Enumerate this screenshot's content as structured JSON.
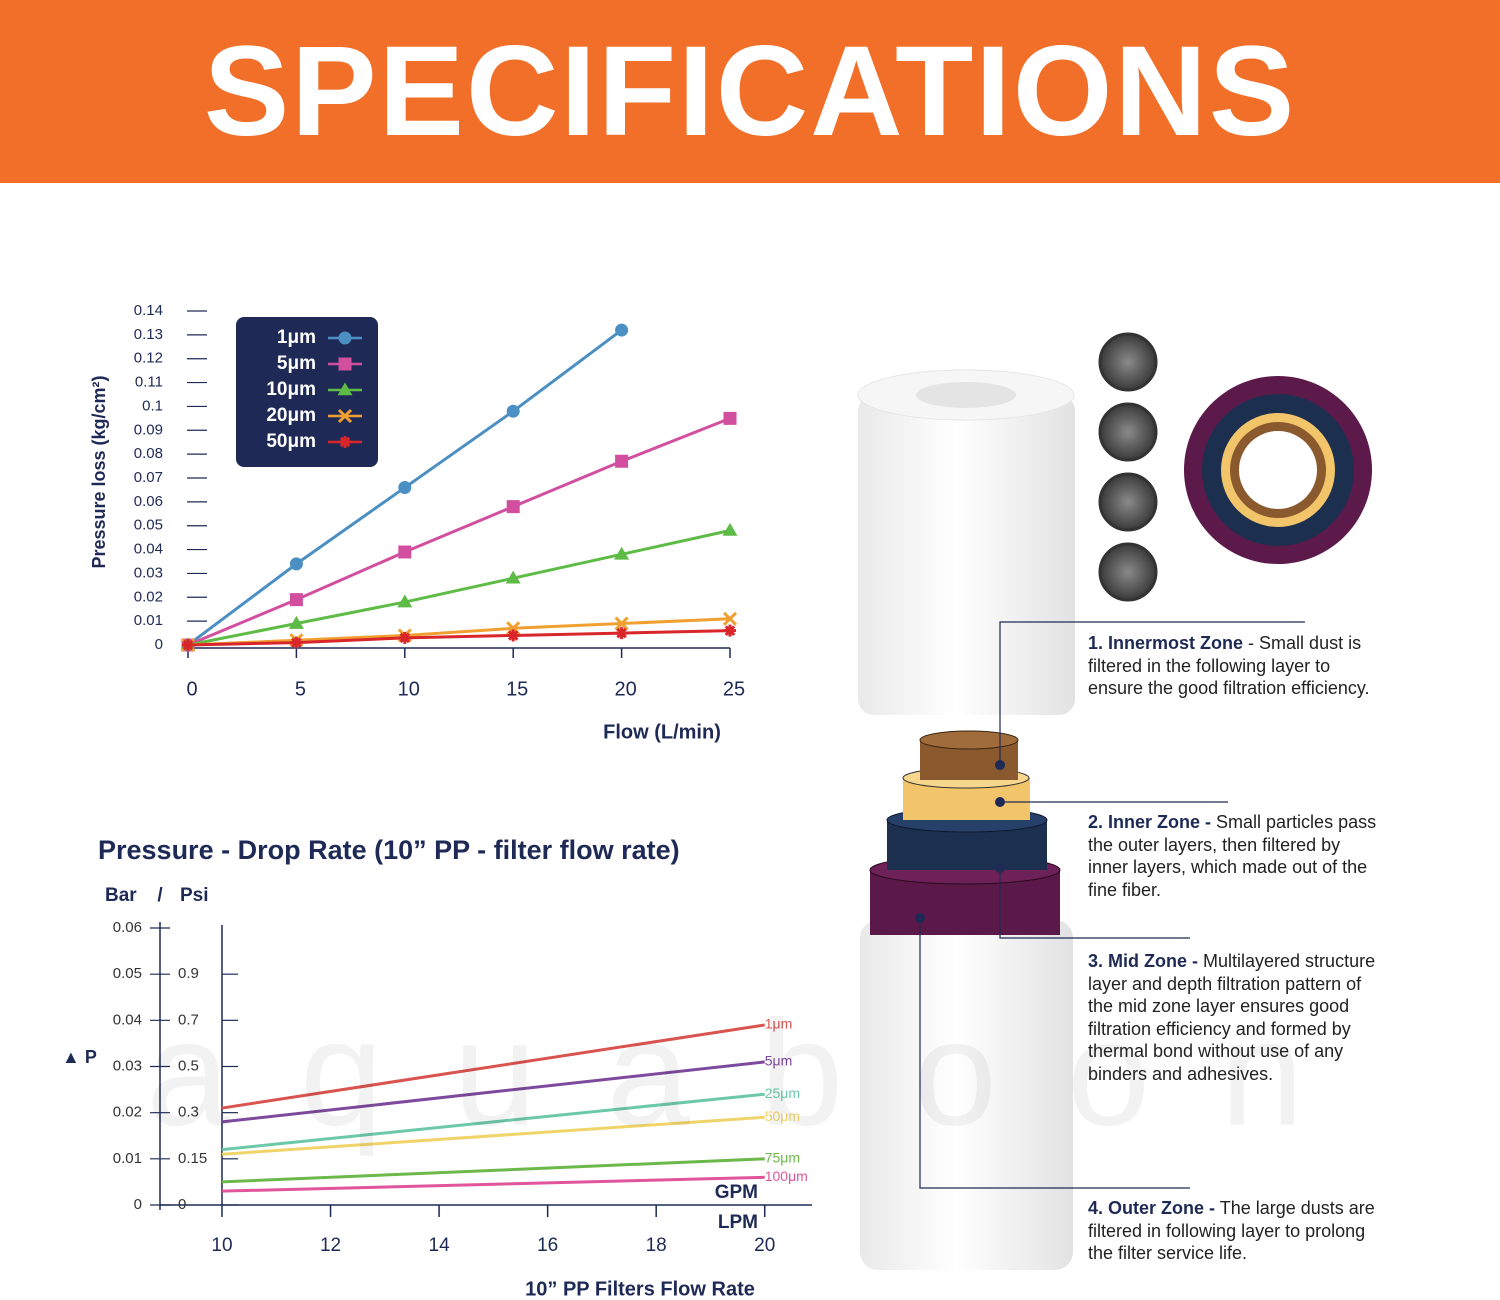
{
  "header": {
    "title": "SPECIFICATIONS"
  },
  "watermark": "aquaboon",
  "chart_data": [
    {
      "type": "line",
      "x_label": "Flow (L/min)",
      "y_label": "Pressure loss (kg/cm²)",
      "x": [
        0,
        5,
        10,
        15,
        20,
        25
      ],
      "xlim": [
        0,
        25
      ],
      "ylim": [
        0,
        0.14
      ],
      "xticks": [
        0,
        5,
        10,
        15,
        20,
        25
      ],
      "yticks": [
        0,
        0.01,
        0.02,
        0.03,
        0.04,
        0.05,
        0.06,
        0.07,
        0.08,
        0.09,
        0.1,
        0.11,
        0.12,
        0.13,
        0.14
      ],
      "legend": "upper left",
      "series": [
        {
          "name": "1μm",
          "color": "#4b8fc3",
          "marker": "circle",
          "values": [
            0,
            0.034,
            0.066,
            0.098,
            0.132,
            null
          ]
        },
        {
          "name": "5μm",
          "color": "#d24fa0",
          "marker": "square",
          "values": [
            0,
            0.019,
            0.039,
            0.058,
            0.077,
            0.095
          ]
        },
        {
          "name": "10μm",
          "color": "#5dbb46",
          "marker": "triangle",
          "values": [
            0,
            0.009,
            0.018,
            0.028,
            0.038,
            0.048
          ]
        },
        {
          "name": "20μm",
          "color": "#f0a030",
          "marker": "x",
          "values": [
            0,
            0.002,
            0.004,
            0.007,
            0.009,
            0.011
          ]
        },
        {
          "name": "50μm",
          "color": "#d9262a",
          "marker": "asterisk",
          "values": [
            0,
            0.001,
            0.003,
            0.004,
            0.005,
            0.006
          ]
        }
      ]
    },
    {
      "type": "line",
      "title": "Pressure - Drop Rate (10” PP - filter flow rate)",
      "y_label": "Bar",
      "axis_separator": "/",
      "y2_label": "Psi",
      "delta_label": "▲ P",
      "x_label": "10” PP Filters Flow Rate",
      "x_unit_labels": [
        "GPM",
        "LPM"
      ],
      "x": [
        10,
        20
      ],
      "xlim": [
        10,
        21
      ],
      "xticks": [
        10,
        12,
        14,
        16,
        18,
        20
      ],
      "ylim": [
        0,
        0.06
      ],
      "yticks": [
        0,
        0.01,
        0.02,
        0.03,
        0.04,
        0.05,
        0.06
      ],
      "y2ticks": [
        0,
        0.15,
        0.3,
        0.5,
        0.7,
        0.9
      ],
      "series": [
        {
          "name": "1μm",
          "color": "#d9534f",
          "values": [
            0.021,
            0.039
          ]
        },
        {
          "name": "5μm",
          "color": "#7d4a9e",
          "values": [
            0.018,
            0.031
          ]
        },
        {
          "name": "25μm",
          "color": "#6cc9a8",
          "values": [
            0.012,
            0.024
          ]
        },
        {
          "name": "50μm",
          "color": "#f0d46a",
          "values": [
            0.011,
            0.019
          ]
        },
        {
          "name": "75μm",
          "color": "#6cb84a",
          "values": [
            0.005,
            0.01
          ]
        },
        {
          "name": "100μm",
          "color": "#e0559b",
          "values": [
            0.003,
            0.006
          ]
        }
      ]
    }
  ],
  "zones": [
    {
      "heading": "1. Innermost Zone",
      "text": "- Small dust is filtered in the following layer to ensure the good filtration efficiency."
    },
    {
      "heading": "2. Inner Zone -",
      "text": "Small particles pass the outer layers, then filtered by inner layers, which made out of the fine fiber."
    },
    {
      "heading": "3. Mid Zone -",
      "text": "Multilayered structure layer and depth filtration pattern of the mid zone layer ensures good filtration efficiency and formed by thermal bond without use of any binders and adhesives."
    },
    {
      "heading": "4. Outer Zone -",
      "text": "The large dusts are filtered in following layer to prolong the filter service life."
    }
  ]
}
